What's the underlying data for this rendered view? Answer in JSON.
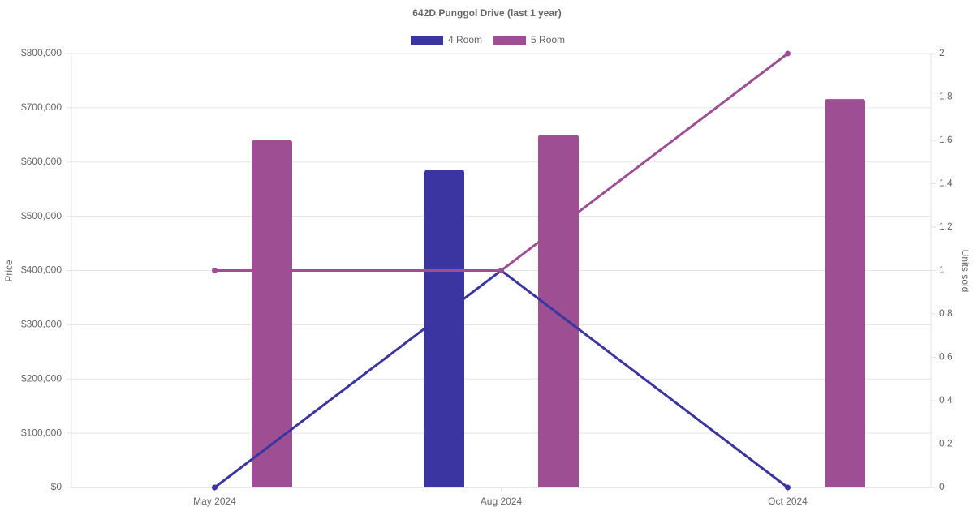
{
  "chart_data": {
    "type": "bar-line",
    "title": "642D Punggol Drive (last 1 year)",
    "categories": [
      "May 2024",
      "Aug 2024",
      "Oct 2024"
    ],
    "series": [
      {
        "name": "4 Room",
        "color": "#3a35a0",
        "values": [
          null,
          585000,
          null
        ],
        "y2_values": [
          0,
          1,
          0
        ]
      },
      {
        "name": "5 Room",
        "color": "#9e4f93",
        "values": [
          640000,
          650000,
          716000
        ],
        "y2_values": [
          1,
          1,
          2
        ]
      }
    ],
    "y_label": "Price",
    "y2_label": "Units sold",
    "ylim": [
      0,
      800000
    ],
    "yticks": [
      {
        "value": 0,
        "label": "$0"
      },
      {
        "value": 100000,
        "label": "$100,000"
      },
      {
        "value": 200000,
        "label": "$200,000"
      },
      {
        "value": 300000,
        "label": "$300,000"
      },
      {
        "value": 400000,
        "label": "$400,000"
      },
      {
        "value": 500000,
        "label": "$500,000"
      },
      {
        "value": 600000,
        "label": "$600,000"
      },
      {
        "value": 700000,
        "label": "$700,000"
      },
      {
        "value": 800000,
        "label": "$800,000"
      }
    ],
    "y2lim": [
      0,
      2
    ],
    "y2ticks": [
      0,
      0.2,
      0.4,
      0.6,
      0.8,
      1,
      1.2,
      1.4,
      1.6,
      1.8,
      2
    ],
    "grid": true
  }
}
